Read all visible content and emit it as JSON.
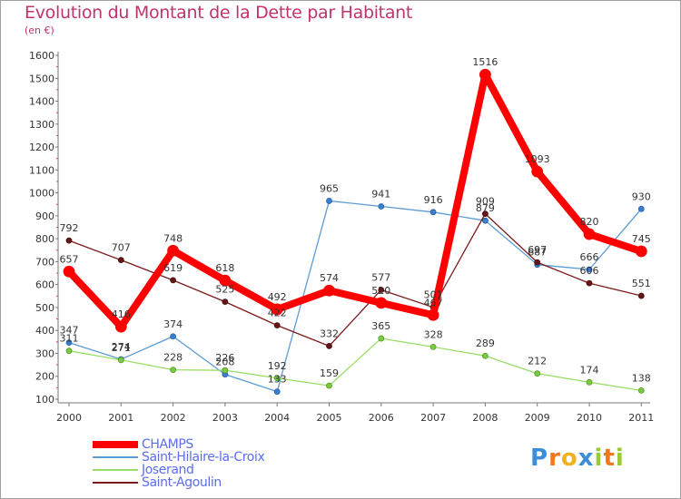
{
  "title": "Evolution du Montant de la Dette par Habitant",
  "subtitle": "(en €)",
  "chart_data": {
    "type": "line",
    "x": [
      "2000",
      "2001",
      "2002",
      "2003",
      "2004",
      "2005",
      "2006",
      "2007",
      "2008",
      "2009",
      "2010",
      "2011"
    ],
    "yticks": [
      100,
      200,
      300,
      400,
      500,
      600,
      700,
      800,
      900,
      1000,
      1100,
      1200,
      1300,
      1400,
      1500,
      1600
    ],
    "ylim": [
      100,
      1600
    ],
    "grid": false,
    "legend_position": "bottom-left",
    "series": [
      {
        "name": "CHAMPS",
        "color": "#ff0000",
        "values": [
          657,
          416,
          748,
          618,
          492,
          574,
          520,
          467,
          1516,
          1093,
          820,
          745
        ],
        "labels": [
          "657",
          "416",
          "748",
          "618",
          "492",
          "574",
          "520",
          "467",
          "1516",
          "1093",
          "820",
          "745"
        ]
      },
      {
        "name": "Saint-Hilaire-la-Croix",
        "color": "#5b9bd5",
        "values": [
          347,
          274,
          374,
          208,
          133,
          965,
          941,
          916,
          879,
          687,
          666,
          930
        ],
        "labels": [
          "347",
          "274",
          "374",
          "208",
          "133",
          "965",
          "941",
          "916",
          "879",
          "687",
          "666",
          "930"
        ]
      },
      {
        "name": "Joserand",
        "color": "#99dd66",
        "values": [
          311,
          271,
          228,
          226,
          192,
          159,
          365,
          328,
          289,
          212,
          174,
          138
        ],
        "labels": [
          "311",
          "271",
          "228",
          "226",
          "192",
          "159",
          "365",
          "328",
          "289",
          "212",
          "174",
          "138"
        ]
      },
      {
        "name": "Saint-Agoulin",
        "color": "#7a1a1a",
        "values": [
          792,
          707,
          619,
          525,
          422,
          332,
          577,
          501,
          909,
          697,
          606,
          551
        ],
        "labels": [
          "792",
          "707",
          "619",
          "525",
          "422",
          "332",
          "577",
          "501",
          "909",
          "697",
          "606",
          "551"
        ]
      }
    ]
  },
  "logo": {
    "letters": [
      "P",
      "r",
      "o",
      "x",
      "i",
      "t",
      "i"
    ],
    "colors": [
      "#3a8fd8",
      "#f07820",
      "#f0b020",
      "#3a8fd8",
      "#99cc33",
      "#f07820",
      "#99cc33"
    ]
  }
}
